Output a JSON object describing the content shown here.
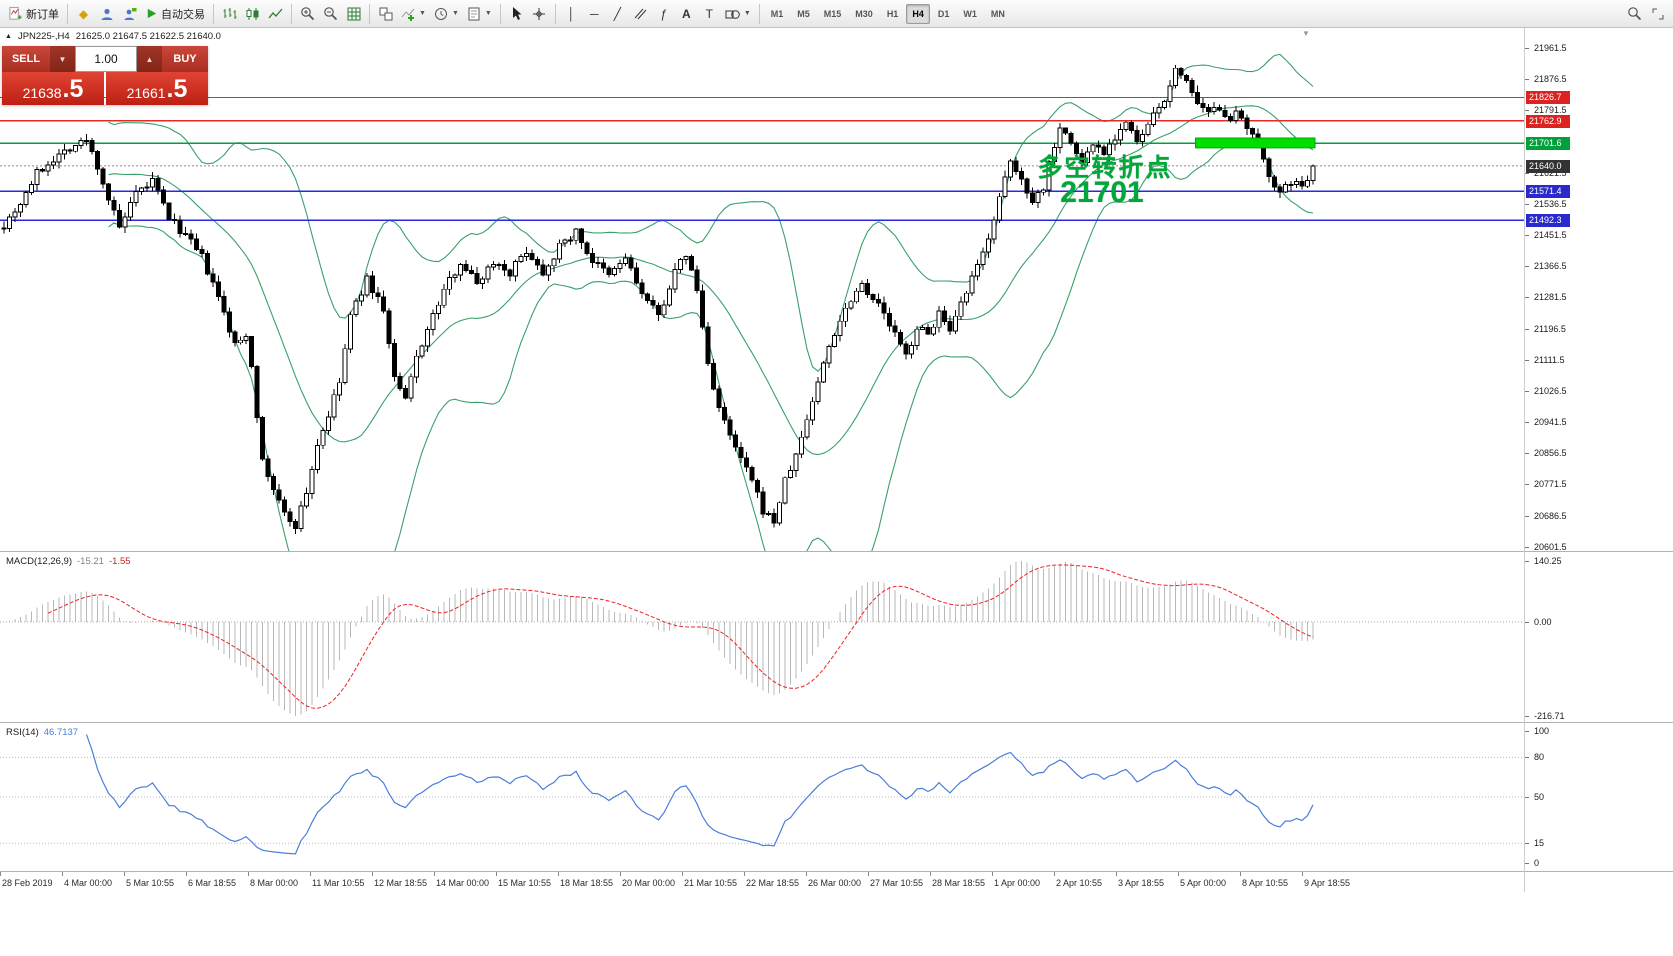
{
  "toolbar": {
    "groups": [
      [
        {
          "name": "new-order",
          "icon": "new-order",
          "label": "新订单"
        }
      ],
      [
        {
          "name": "mql5",
          "icon": "mql5"
        },
        {
          "name": "community",
          "icon": "person"
        },
        {
          "name": "support",
          "icon": "person-chat"
        },
        {
          "name": "autotrading",
          "icon": "autotrade-play",
          "label": "自动交易"
        }
      ],
      [
        {
          "name": "bar-chart-mode",
          "icon": "bars-chart"
        },
        {
          "name": "candle-chart-mode",
          "icon": "candles-chart"
        },
        {
          "name": "line-chart-mode",
          "icon": "line-chart"
        }
      ],
      [
        {
          "name": "zoom-in",
          "icon": "zoom-in"
        },
        {
          "name": "zoom-out",
          "icon": "zoom-out"
        },
        {
          "name": "auto-arrange",
          "icon": "grid"
        }
      ],
      [
        {
          "name": "tile-windows",
          "icon": "tile"
        },
        {
          "name": "indicators",
          "icon": "indicator-plus",
          "caret": true
        },
        {
          "name": "periods",
          "icon": "clock",
          "caret": true
        },
        {
          "name": "templates",
          "icon": "template",
          "caret": true
        }
      ],
      [
        {
          "name": "cursor",
          "icon": "cursor"
        },
        {
          "name": "crosshair",
          "icon": "crosshair"
        }
      ],
      [
        {
          "name": "vertical-line",
          "icon": "vline"
        },
        {
          "name": "horizontal-line",
          "icon": "hline"
        },
        {
          "name": "trendline",
          "icon": "trendline"
        },
        {
          "name": "channel",
          "icon": "channel"
        },
        {
          "name": "fibonacci",
          "icon": "fibo"
        },
        {
          "name": "text",
          "icon": "text"
        },
        {
          "name": "text-label",
          "icon": "label"
        },
        {
          "name": "shapes",
          "icon": "shapes",
          "caret": true
        }
      ]
    ],
    "timeframes": [
      "M1",
      "M5",
      "M15",
      "M30",
      "H1",
      "H4",
      "D1",
      "W1",
      "MN"
    ],
    "active_timeframe": "H4",
    "right_items": [
      {
        "name": "search",
        "icon": "search"
      },
      {
        "name": "fullscreen",
        "icon": "expand"
      }
    ]
  },
  "chart_header": {
    "collapse_glyph": "▲",
    "symbol": "JPN225-,H4",
    "ohlc": "21625.0 21647.5 21622.5 21640.0"
  },
  "trade_panel": {
    "sell_label": "SELL",
    "buy_label": "BUY",
    "volume": "1.00",
    "spin_down": "▼",
    "spin_up": "▲",
    "sell_price_main": "21638",
    "sell_price_frac": ".5",
    "buy_price_main": "21661",
    "buy_price_frac": ".5"
  },
  "annotation": {
    "line1": "多空转折点",
    "line2": "21701",
    "color": "#00a83a"
  },
  "macd_panel": {
    "title": "MACD(12,26,9)",
    "value_main": "-15.21",
    "value_signal": "-1.55",
    "axis_labels": [
      "140.25",
      "0.00",
      "-216.71"
    ],
    "range": [
      140.25,
      -216.71
    ]
  },
  "rsi_panel": {
    "title": "RSI(14)",
    "value": "46.7137",
    "axis_labels": [
      "100",
      "80",
      "50",
      "15",
      "0"
    ],
    "levels": [
      80,
      50,
      15
    ]
  },
  "misc": {
    "shift_marker_glyph": "▼"
  },
  "time_axis": {
    "labels": [
      "28 Feb 2019",
      "4 Mar 00:00",
      "5 Mar 10:55",
      "6 Mar 18:55",
      "8 Mar 00:00",
      "11 Mar 10:55",
      "12 Mar 18:55",
      "14 Mar 00:00",
      "15 Mar 10:55",
      "18 Mar 18:55",
      "20 Mar 00:00",
      "21 Mar 10:55",
      "22 Mar 18:55",
      "26 Mar 00:00",
      "27 Mar 10:55",
      "28 Mar 18:55",
      "1 Apr 00:00",
      "2 Apr 10:55",
      "3 Apr 18:55",
      "5 Apr 00:00",
      "8 Apr 10:55",
      "9 Apr 18:55"
    ]
  },
  "chart_data": {
    "type": "candlestick",
    "symbol": "JPN225",
    "timeframe": "H4",
    "current_ohlc": {
      "open": 21625.0,
      "high": 21647.5,
      "low": 21622.5,
      "close": 21640.0
    },
    "bar_count": 239,
    "price_axis": {
      "top_price": 21961.5,
      "bottom_price": 20611.5,
      "plain_labels": [
        "21961.5",
        "21876.5",
        "21791.5",
        "21621.5",
        "21536.5",
        "21451.5",
        "21366.5",
        "21281.5",
        "21196.5",
        "21111.5",
        "21026.5",
        "20941.5",
        "20856.5",
        "20771.5",
        "20686.5",
        "20601.5"
      ],
      "markers": [
        {
          "value": "21826.7",
          "color": "#dd2222"
        },
        {
          "value": "21762.9",
          "color": "#dd2222"
        },
        {
          "value": "21701.6",
          "color": "#00a03c"
        },
        {
          "value": "21640.0",
          "color": "#333333"
        },
        {
          "value": "21571.4",
          "color": "#2a2acc"
        },
        {
          "value": "21492.3",
          "color": "#2a2acc"
        }
      ]
    },
    "hlines": [
      {
        "price": 21826.7,
        "color": "#e52828",
        "w": 1.2
      },
      {
        "price": 21762.9,
        "color": "#e52828",
        "w": 1.2
      },
      {
        "price": 21701.6,
        "color": "#00a03c",
        "w": 1.5
      },
      {
        "price": 21571.4,
        "color": "#2a2add",
        "w": 1.5
      },
      {
        "price": 21492.3,
        "color": "#2a2add",
        "w": 1.5
      }
    ],
    "current_price": {
      "value": 21640.0,
      "line_color": "#888888"
    },
    "zone": {
      "bar_start": 217,
      "bar_end": 238,
      "price_top": 21716,
      "price_bottom": 21689,
      "color": "#00dd00"
    },
    "indicators": {
      "bollinger": {
        "period": 20,
        "deviation": 2,
        "color": "#3aa06a"
      },
      "macd": {
        "fast": 12,
        "slow": 26,
        "signal": 9,
        "hist_color": "#b8b8b8",
        "signal_color": "#ee2222"
      },
      "rsi": {
        "period": 14,
        "color": "#4a7edb"
      }
    },
    "candle_colors": {
      "up": "#ffffff",
      "down": "#000000",
      "border": "#000000"
    },
    "close_anchors": [
      [
        0,
        21480
      ],
      [
        3,
        21540
      ],
      [
        6,
        21620
      ],
      [
        9,
        21660
      ],
      [
        12,
        21690
      ],
      [
        15,
        21710
      ],
      [
        17,
        21640
      ],
      [
        19,
        21550
      ],
      [
        21,
        21470
      ],
      [
        24,
        21560
      ],
      [
        27,
        21600
      ],
      [
        30,
        21500
      ],
      [
        33,
        21450
      ],
      [
        36,
        21390
      ],
      [
        39,
        21280
      ],
      [
        42,
        21150
      ],
      [
        44,
        21180
      ],
      [
        45,
        21100
      ],
      [
        47,
        20830
      ],
      [
        49,
        20760
      ],
      [
        51,
        20690
      ],
      [
        53,
        20660
      ],
      [
        55,
        20750
      ],
      [
        57,
        20880
      ],
      [
        59,
        20960
      ],
      [
        61,
        21050
      ],
      [
        63,
        21230
      ],
      [
        66,
        21330
      ],
      [
        69,
        21250
      ],
      [
        71,
        21060
      ],
      [
        73,
        21000
      ],
      [
        75,
        21120
      ],
      [
        78,
        21230
      ],
      [
        80,
        21300
      ],
      [
        83,
        21380
      ],
      [
        86,
        21320
      ],
      [
        89,
        21380
      ],
      [
        92,
        21350
      ],
      [
        95,
        21410
      ],
      [
        98,
        21350
      ],
      [
        101,
        21420
      ],
      [
        104,
        21460
      ],
      [
        107,
        21380
      ],
      [
        110,
        21340
      ],
      [
        113,
        21390
      ],
      [
        116,
        21290
      ],
      [
        119,
        21230
      ],
      [
        122,
        21350
      ],
      [
        124,
        21400
      ],
      [
        126,
        21300
      ],
      [
        128,
        21100
      ],
      [
        130,
        20980
      ],
      [
        132,
        20900
      ],
      [
        134,
        20840
      ],
      [
        136,
        20780
      ],
      [
        138,
        20700
      ],
      [
        140,
        20670
      ],
      [
        142,
        20780
      ],
      [
        144,
        20850
      ],
      [
        146,
        20950
      ],
      [
        148,
        21050
      ],
      [
        150,
        21150
      ],
      [
        152,
        21220
      ],
      [
        154,
        21280
      ],
      [
        156,
        21320
      ],
      [
        159,
        21260
      ],
      [
        162,
        21180
      ],
      [
        164,
        21120
      ],
      [
        166,
        21200
      ],
      [
        168,
        21180
      ],
      [
        170,
        21240
      ],
      [
        172,
        21180
      ],
      [
        174,
        21260
      ],
      [
        176,
        21330
      ],
      [
        178,
        21400
      ],
      [
        179,
        21450
      ],
      [
        181,
        21550
      ],
      [
        183,
        21650
      ],
      [
        185,
        21600
      ],
      [
        187,
        21550
      ],
      [
        189,
        21580
      ],
      [
        190,
        21650
      ],
      [
        192,
        21750
      ],
      [
        194,
        21700
      ],
      [
        196,
        21650
      ],
      [
        198,
        21700
      ],
      [
        200,
        21680
      ],
      [
        202,
        21720
      ],
      [
        204,
        21760
      ],
      [
        206,
        21700
      ],
      [
        208,
        21750
      ],
      [
        210,
        21800
      ],
      [
        212,
        21850
      ],
      [
        213,
        21900
      ],
      [
        215,
        21880
      ],
      [
        217,
        21800
      ],
      [
        219,
        21780
      ],
      [
        221,
        21800
      ],
      [
        223,
        21770
      ],
      [
        224,
        21780
      ],
      [
        226,
        21740
      ],
      [
        228,
        21700
      ],
      [
        230,
        21620
      ],
      [
        232,
        21560
      ],
      [
        234,
        21600
      ],
      [
        236,
        21580
      ],
      [
        238,
        21640
      ]
    ]
  }
}
